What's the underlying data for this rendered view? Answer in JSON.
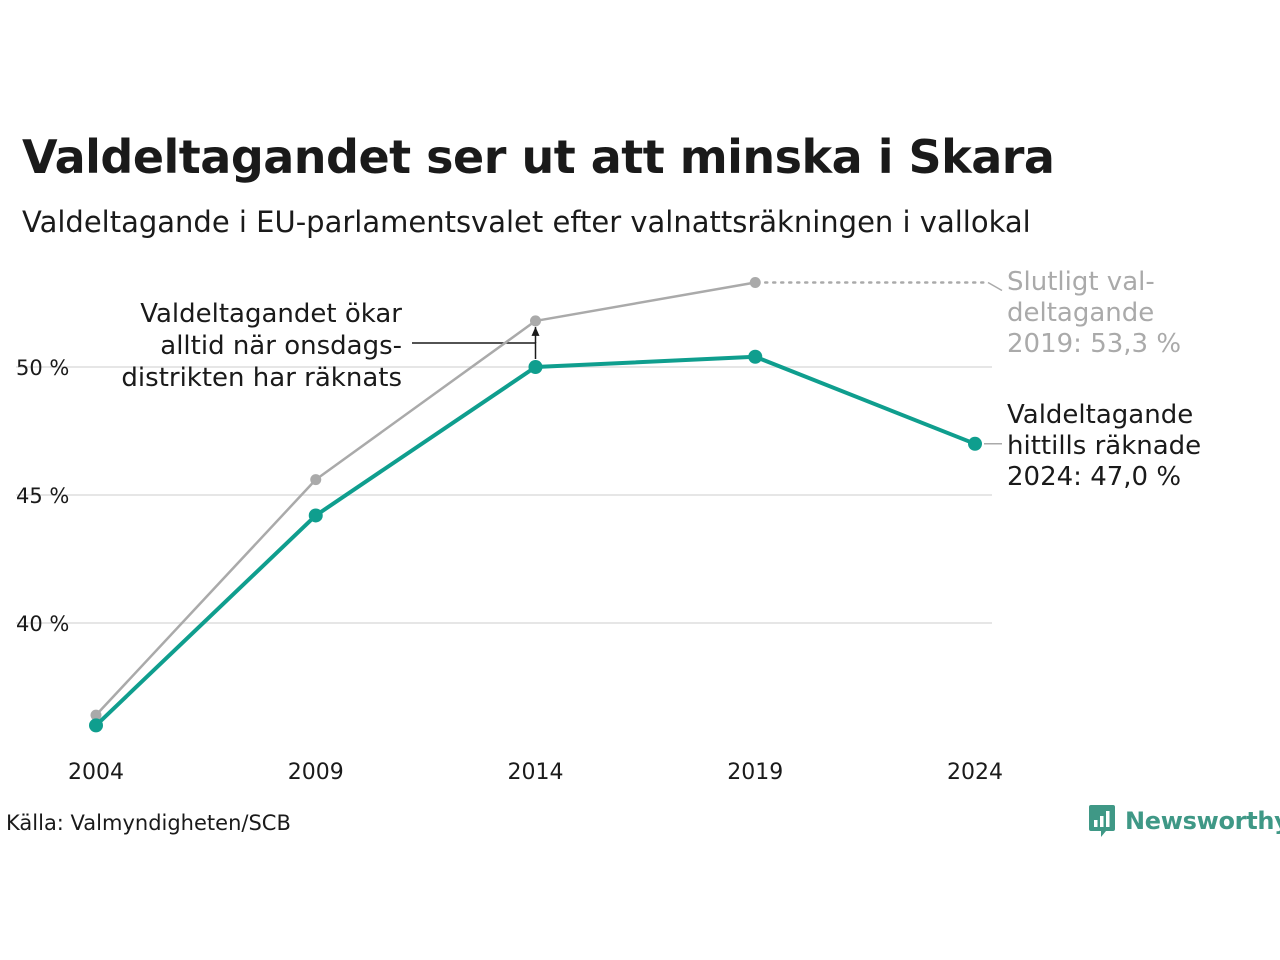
{
  "title": "Valdeltagandet ser ut att minska i Skara",
  "subtitle": "Valdeltagande i EU-parlamentsvalet efter valnattsräkningen i vallokal",
  "source": "Källa: Valmyndigheten/SCB",
  "logo_text": "Newsworthy",
  "colors": {
    "final": "#aaaaaa",
    "counted": "#0f9e8e",
    "grid": "#e6e6e6",
    "logo": "#3f9886"
  },
  "chart_data": {
    "type": "line",
    "x": [
      2004,
      2009,
      2014,
      2019,
      2024
    ],
    "x_tick_labels": [
      "2004",
      "2009",
      "2014",
      "2019",
      "2024"
    ],
    "y_ticks": [
      40,
      45,
      50
    ],
    "y_tick_labels": [
      "40 %",
      "45 %",
      "50 %"
    ],
    "ylim": [
      35.5,
      54.5
    ],
    "grid": true,
    "series": [
      {
        "key": "final",
        "x": [
          2004,
          2009,
          2014,
          2019
        ],
        "values": [
          36.4,
          45.6,
          51.8,
          53.3
        ]
      },
      {
        "key": "counted",
        "x": [
          2004,
          2009,
          2014,
          2019,
          2024
        ],
        "values": [
          36.0,
          44.2,
          50.0,
          50.4,
          47.0
        ]
      }
    ],
    "annotations": {
      "final_label": [
        "Slutligt val-",
        "deltagande",
        "2019: 53,3 %"
      ],
      "counted_label": [
        "Valdeltagande",
        "hittills räknade",
        "2024: 47,0 %"
      ],
      "note": [
        "Valdeltagandet ökar",
        "alltid när onsdags-",
        "distrikten har räknats"
      ]
    }
  }
}
